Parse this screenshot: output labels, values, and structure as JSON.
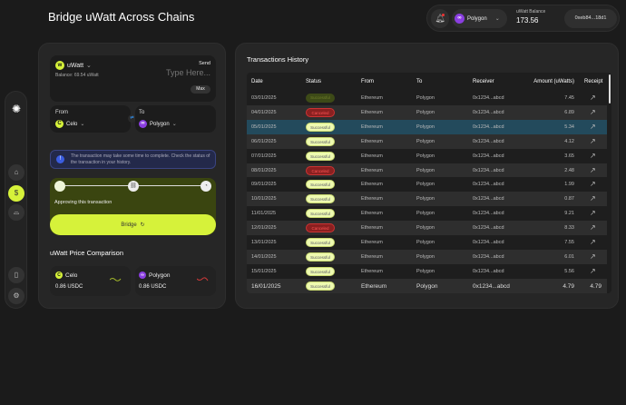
{
  "header": {
    "title": "Bridge uWatt Across Chains",
    "network": "Polygon",
    "balance_label": "uWatt Balance",
    "balance": "173.56",
    "wallet": "0xeb84...18d1"
  },
  "bridge": {
    "token": "uWatt",
    "balance": "Balance: 69.54 uWatt",
    "send_label": "Send",
    "amount_placeholder": "Type Here...",
    "max": "Max",
    "from_label": "From",
    "from_chain": "Celo",
    "to_label": "To",
    "to_chain": "Polygon",
    "notice": "The transaction may take some time to complete. Check the status of the transaction in your history.",
    "progress_text": "Approving this transaction",
    "bridge_button": "Bridge"
  },
  "price": {
    "title": "uWatt Price Comparison",
    "items": [
      {
        "chain": "Celo",
        "price": "0.86 USDC",
        "trend": "up",
        "color": "#a3b82a"
      },
      {
        "chain": "Polygon",
        "price": "0.86 USDC",
        "trend": "down",
        "color": "#d03a3a"
      }
    ]
  },
  "history": {
    "title": "Transactions History",
    "columns": [
      "Date",
      "Status",
      "From",
      "To",
      "Receiver",
      "Amount (uWatts)",
      "Receipt"
    ],
    "rows": [
      [
        "03/01/2025",
        "Successful",
        "Ethereum",
        "Polygon",
        "0x1234...abcd",
        "7.45"
      ],
      [
        "04/01/2025",
        "Canceled",
        "Ethereum",
        "Polygon",
        "0x1234...abcd",
        "6.89"
      ],
      [
        "05/01/2025",
        "Successful",
        "Ethereum",
        "Polygon",
        "0x1234...abcd",
        "5.34"
      ],
      [
        "06/01/2025",
        "Successful",
        "Ethereum",
        "Polygon",
        "0x1234...abcd",
        "4.12"
      ],
      [
        "07/01/2025",
        "Successful",
        "Ethereum",
        "Polygon",
        "0x1234...abcd",
        "3.65"
      ],
      [
        "08/01/2025",
        "Canceled",
        "Ethereum",
        "Polygon",
        "0x1234...abcd",
        "2.48"
      ],
      [
        "09/01/2025",
        "Successful",
        "Ethereum",
        "Polygon",
        "0x1234...abcd",
        "1.99"
      ],
      [
        "10/01/2025",
        "Successful",
        "Ethereum",
        "Polygon",
        "0x1234...abcd",
        "0.87"
      ],
      [
        "11/01/2025",
        "Successful",
        "Ethereum",
        "Polygon",
        "0x1234...abcd",
        "9.21"
      ],
      [
        "12/01/2025",
        "Canceled",
        "Ethereum",
        "Polygon",
        "0x1234...abcd",
        "8.33"
      ],
      [
        "13/01/2025",
        "Successful",
        "Ethereum",
        "Polygon",
        "0x1234...abcd",
        "7.55"
      ],
      [
        "14/01/2025",
        "Successful",
        "Ethereum",
        "Polygon",
        "0x1234...abcd",
        "6.01"
      ],
      [
        "15/01/2025",
        "Successful",
        "Ethereum",
        "Polygon",
        "0x1234...abcd",
        "5.56"
      ],
      [
        "16/01/2025",
        "Successful",
        "Ethereum",
        "Polygon",
        "0x1234...abcd",
        "4.79",
        "4.79"
      ]
    ]
  }
}
